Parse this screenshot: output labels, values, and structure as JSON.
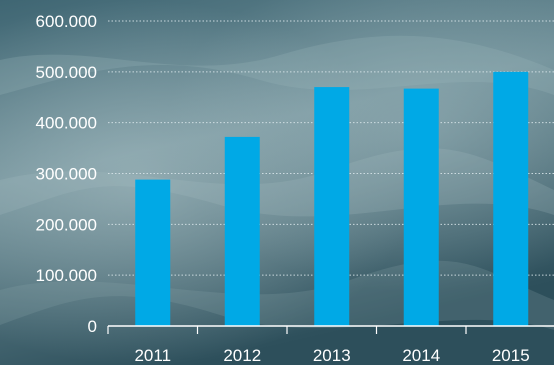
{
  "chart_data": {
    "type": "bar",
    "title": "",
    "xlabel": "",
    "ylabel": "",
    "categories": [
      "2011",
      "2012",
      "2013",
      "2014",
      "2015"
    ],
    "values": [
      288000,
      372000,
      470000,
      467000,
      500000
    ],
    "ylim": [
      0,
      600000
    ],
    "yticks": [
      0,
      100000,
      200000,
      300000,
      400000,
      500000,
      600000
    ],
    "ytick_labels": [
      "0",
      "100.000",
      "200.000",
      "300.000",
      "400.000",
      "500.000",
      "600.000"
    ],
    "grid": true,
    "legend": "none",
    "colors": {
      "bar": "#00a9e6",
      "text": "#ffffff",
      "grid": "#d6e3e8",
      "axis": "#ffffff",
      "background_dark": "#2f5360",
      "background_light": "#8aa6ad"
    }
  }
}
